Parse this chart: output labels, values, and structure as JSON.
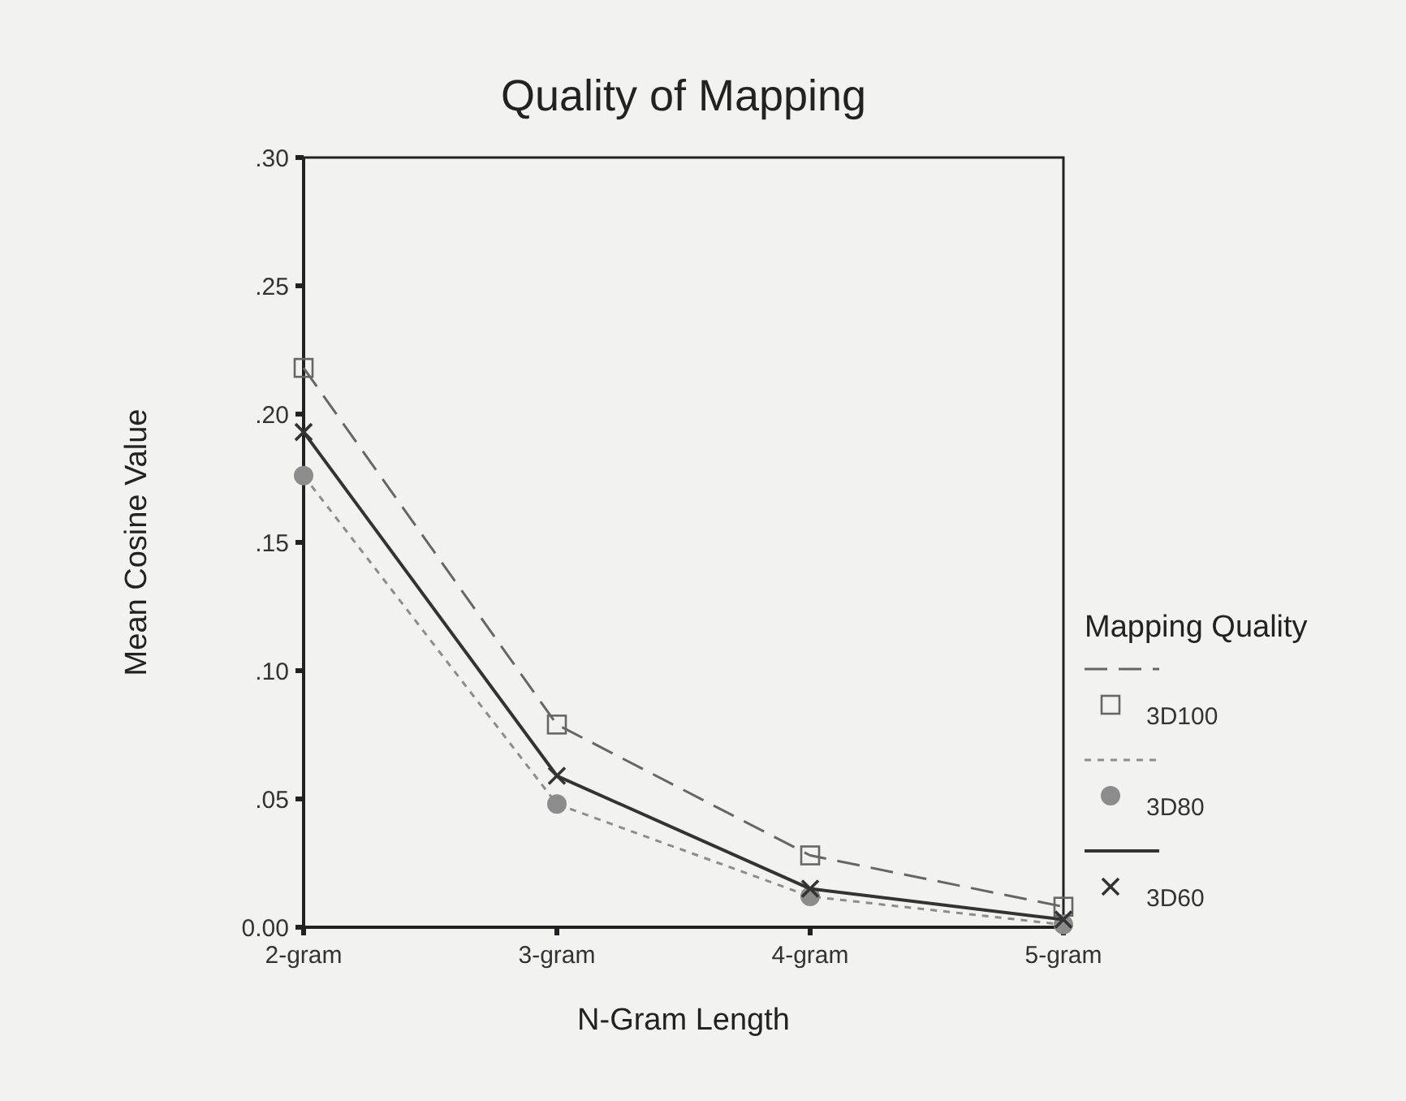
{
  "chart_data": {
    "type": "line",
    "title": "Quality of Mapping",
    "xlabel": "N-Gram Length",
    "ylabel": "Mean Cosine Value",
    "legend_title": "Mapping Quality",
    "categories": [
      "2-gram",
      "3-gram",
      "4-gram",
      "5-gram"
    ],
    "series": [
      {
        "name": "3D100",
        "color": "#666666",
        "values": [
          0.218,
          0.079,
          0.028,
          0.008
        ],
        "marker": "square",
        "line_style": "dashed"
      },
      {
        "name": "3D80",
        "color": "#8c8c8c",
        "values": [
          0.176,
          0.048,
          0.012,
          0.001
        ],
        "marker": "circle",
        "line_style": "dotted"
      },
      {
        "name": "3D60",
        "color": "#333333",
        "values": [
          0.193,
          0.059,
          0.015,
          0.003
        ],
        "marker": "cross",
        "line_style": "solid"
      }
    ],
    "ylim": [
      0,
      0.3
    ],
    "yticks": [
      {
        "value": 0,
        "label": "0.00"
      },
      {
        "value": 0.05,
        "label": ".05"
      },
      {
        "value": 0.1,
        "label": ".10"
      },
      {
        "value": 0.15,
        "label": ".15"
      },
      {
        "value": 0.2,
        "label": ".20"
      },
      {
        "value": 0.25,
        "label": ".25"
      },
      {
        "value": 0.3,
        "label": ".30"
      }
    ],
    "legend": "right",
    "grid": false
  }
}
